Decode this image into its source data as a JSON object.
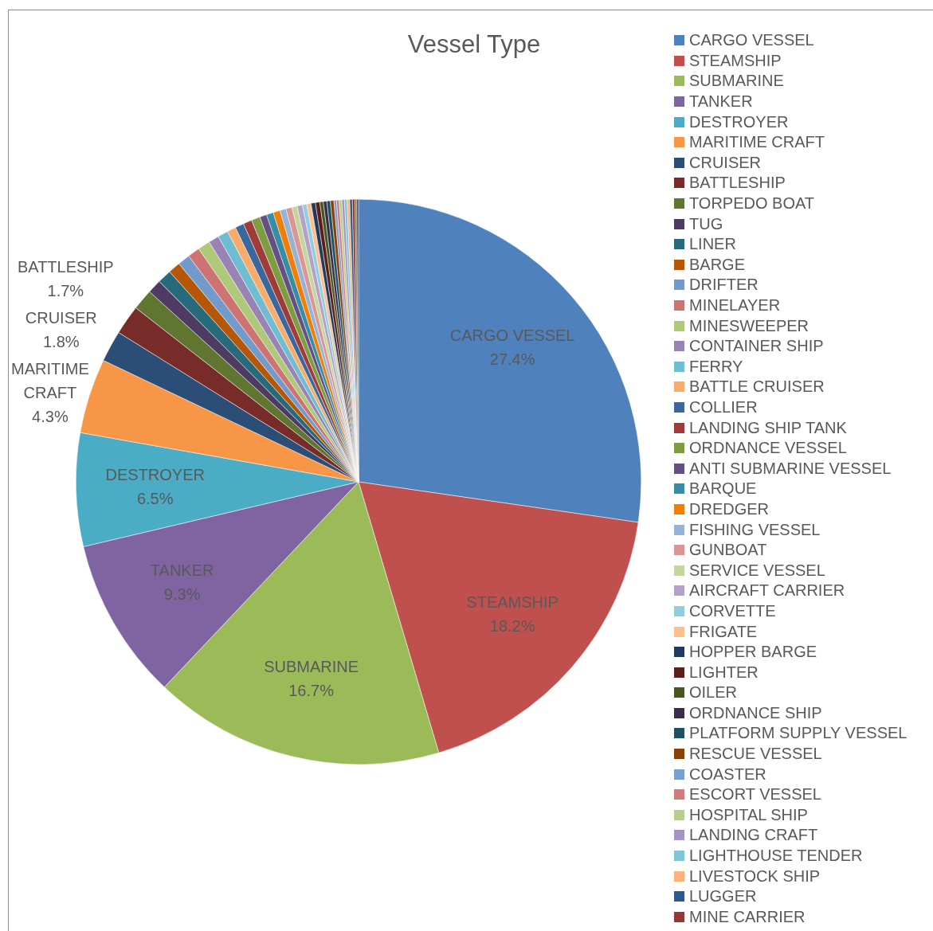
{
  "chart_data": {
    "type": "pie",
    "title": "Vessel Type",
    "legend": "right",
    "categories": [
      "CARGO VESSEL",
      "STEAMSHIP",
      "SUBMARINE",
      "TANKER",
      "DESTROYER",
      "MARITIME CRAFT",
      "CRUISER",
      "BATTLESHIP",
      "TORPEDO BOAT",
      "TUG",
      "LINER",
      "BARGE",
      "DRIFTER",
      "MINELAYER",
      "MINESWEEPER",
      "CONTAINER SHIP",
      "FERRY",
      "BATTLE CRUISER",
      "COLLIER",
      "LANDING SHIP TANK",
      "ORDNANCE VESSEL",
      "ANTI SUBMARINE VESSEL",
      "BARQUE",
      "DREDGER",
      "FISHING VESSEL",
      "GUNBOAT",
      "SERVICE VESSEL",
      "AIRCRAFT CARRIER",
      "CORVETTE",
      "FRIGATE",
      "HOPPER BARGE",
      "LIGHTER",
      "OILER",
      "ORDNANCE SHIP",
      "PLATFORM SUPPLY VESSEL",
      "RESCUE VESSEL",
      "COASTER",
      "ESCORT VESSEL",
      "HOSPITAL SHIP",
      "LANDING CRAFT",
      "LIGHTHOUSE TENDER",
      "LIVESTOCK SHIP",
      "LUGGER",
      "MINE CARRIER",
      null,
      null
    ],
    "values": [
      27.4,
      18.2,
      16.7,
      9.3,
      6.5,
      4.3,
      1.8,
      1.7,
      1.2,
      0.8,
      0.8,
      0.7,
      0.7,
      0.7,
      0.7,
      0.6,
      0.6,
      0.5,
      0.5,
      0.5,
      0.5,
      0.4,
      0.4,
      0.4,
      0.35,
      0.35,
      0.3,
      0.3,
      0.25,
      0.25,
      0.25,
      0.25,
      0.2,
      0.2,
      0.2,
      0.2,
      0.15,
      0.15,
      0.15,
      0.15,
      0.15,
      0.15,
      0.15,
      0.15,
      0.1,
      0.1
    ],
    "value_labels": [
      "27.4%",
      "18.2%",
      "16.7%",
      "9.3%",
      "6.5%",
      "4.3%",
      "1.8%",
      "1.7%",
      null,
      null,
      null,
      null,
      null,
      null,
      null,
      null,
      null,
      null,
      null,
      null,
      null,
      null,
      null,
      null,
      null,
      null,
      null,
      null,
      null,
      null,
      null,
      null,
      null,
      null,
      null,
      null,
      null,
      null,
      null,
      null,
      null,
      null,
      null,
      null,
      null,
      null
    ],
    "colors": [
      "#4f81bd",
      "#c0504d",
      "#9bbb59",
      "#8064a2",
      "#4bacc6",
      "#f79646",
      "#2c4d75",
      "#772c2a",
      "#5f7530",
      "#4d3b62",
      "#276a7c",
      "#b65708",
      "#729aca",
      "#cd7371",
      "#afc97a",
      "#9983b5",
      "#6fbdd1",
      "#f9ab6b",
      "#3a679c",
      "#9f3b38",
      "#7e9c40",
      "#664f83",
      "#358ea6",
      "#f07f09",
      "#95b3d7",
      "#d99694",
      "#c3d69b",
      "#b3a2c7",
      "#93cddd",
      "#fac090",
      "#1f3a5c",
      "#5a1f1d",
      "#46581f",
      "#3a2c4b",
      "#1d5060",
      "#884205",
      "#7aa0cd",
      "#d17c7a",
      "#b7cf8b",
      "#a693bf",
      "#81c6d8",
      "#fab37a",
      "#2c5a8f",
      "#953735",
      "#5f7530",
      "#4d3b62"
    ]
  }
}
